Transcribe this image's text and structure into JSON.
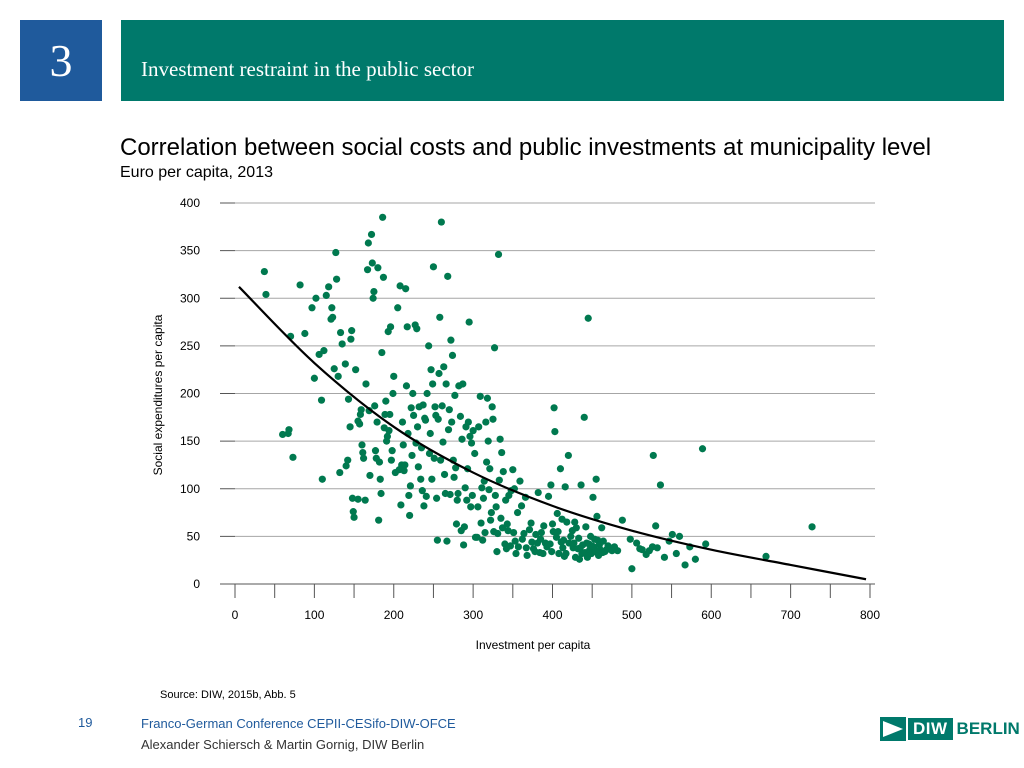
{
  "header": {
    "section_number": "3",
    "title": "Investment restraint in the public sector"
  },
  "colors": {
    "section_box": "#1f5a9c",
    "header_bar": "#00796b",
    "points": "#00794f",
    "trend": "#000000"
  },
  "chart_data": {
    "type": "scatter",
    "title": "Correlation between social costs and public investments at municipality level",
    "subtitle": "Euro per capita, 2013",
    "xlabel": "Investment per capita",
    "ylabel": "Social expenditures per capita",
    "xlim": [
      0,
      800
    ],
    "ylim": [
      0,
      400
    ],
    "xticks": [
      0,
      100,
      200,
      300,
      400,
      500,
      600,
      700,
      800
    ],
    "yticks": [
      0,
      50,
      100,
      150,
      200,
      250,
      300,
      350,
      400
    ],
    "grid": "horizontal",
    "trendline": {
      "type": "exponential",
      "x": [
        5,
        100,
        200,
        300,
        400,
        500,
        600,
        700,
        795
      ],
      "y": [
        312,
        232,
        165,
        117,
        82,
        56,
        36,
        20,
        5
      ]
    },
    "points": [
      [
        37,
        328
      ],
      [
        39,
        304
      ],
      [
        60,
        157
      ],
      [
        67,
        158
      ],
      [
        68,
        162
      ],
      [
        70,
        260
      ],
      [
        73,
        133
      ],
      [
        82,
        314
      ],
      [
        88,
        263
      ],
      [
        97,
        290
      ],
      [
        100,
        216
      ],
      [
        102,
        300
      ],
      [
        106,
        241
      ],
      [
        109,
        193
      ],
      [
        110,
        110
      ],
      [
        112,
        245
      ],
      [
        115,
        303
      ],
      [
        118,
        312
      ],
      [
        121,
        278
      ],
      [
        122,
        290
      ],
      [
        123,
        280
      ],
      [
        125,
        226
      ],
      [
        127,
        348
      ],
      [
        128,
        320
      ],
      [
        130,
        218
      ],
      [
        132,
        117
      ],
      [
        133,
        264
      ],
      [
        135,
        252
      ],
      [
        139,
        231
      ],
      [
        140,
        124
      ],
      [
        142,
        130
      ],
      [
        143,
        194
      ],
      [
        145,
        165
      ],
      [
        146,
        257
      ],
      [
        147,
        266
      ],
      [
        148,
        90
      ],
      [
        149,
        76
      ],
      [
        150,
        70
      ],
      [
        152,
        225
      ],
      [
        155,
        171
      ],
      [
        155,
        89
      ],
      [
        157,
        168
      ],
      [
        158,
        178
      ],
      [
        159,
        183
      ],
      [
        160,
        146
      ],
      [
        161,
        138
      ],
      [
        162,
        132
      ],
      [
        164,
        88
      ],
      [
        165,
        210
      ],
      [
        167,
        330
      ],
      [
        168,
        358
      ],
      [
        169,
        182
      ],
      [
        170,
        114
      ],
      [
        172,
        367
      ],
      [
        173,
        337
      ],
      [
        174,
        300
      ],
      [
        175,
        307
      ],
      [
        176,
        187
      ],
      [
        177,
        140
      ],
      [
        178,
        132
      ],
      [
        179,
        170
      ],
      [
        180,
        332
      ],
      [
        181,
        67
      ],
      [
        182,
        128
      ],
      [
        183,
        110
      ],
      [
        184,
        95
      ],
      [
        185,
        243
      ],
      [
        186,
        385
      ],
      [
        187,
        322
      ],
      [
        188,
        164
      ],
      [
        189,
        178
      ],
      [
        190,
        192
      ],
      [
        191,
        150
      ],
      [
        192,
        155
      ],
      [
        193,
        265
      ],
      [
        194,
        161
      ],
      [
        195,
        178
      ],
      [
        196,
        270
      ],
      [
        197,
        130
      ],
      [
        198,
        140
      ],
      [
        199,
        200
      ],
      [
        200,
        218
      ],
      [
        202,
        117
      ],
      [
        205,
        290
      ],
      [
        207,
        120
      ],
      [
        208,
        313
      ],
      [
        209,
        83
      ],
      [
        210,
        125
      ],
      [
        211,
        170
      ],
      [
        212,
        146
      ],
      [
        213,
        119
      ],
      [
        214,
        125
      ],
      [
        215,
        310
      ],
      [
        216,
        208
      ],
      [
        217,
        270
      ],
      [
        218,
        158
      ],
      [
        219,
        93
      ],
      [
        220,
        72
      ],
      [
        221,
        103
      ],
      [
        222,
        185
      ],
      [
        223,
        135
      ],
      [
        224,
        200
      ],
      [
        225,
        177
      ],
      [
        227,
        272
      ],
      [
        228,
        148
      ],
      [
        229,
        268
      ],
      [
        230,
        165
      ],
      [
        231,
        123
      ],
      [
        232,
        186
      ],
      [
        234,
        110
      ],
      [
        235,
        143
      ],
      [
        236,
        98
      ],
      [
        237,
        188
      ],
      [
        238,
        82
      ],
      [
        239,
        174
      ],
      [
        240,
        172
      ],
      [
        241,
        92
      ],
      [
        242,
        200
      ],
      [
        244,
        250
      ],
      [
        245,
        137
      ],
      [
        246,
        158
      ],
      [
        247,
        225
      ],
      [
        248,
        110
      ],
      [
        249,
        210
      ],
      [
        250,
        333
      ],
      [
        251,
        132
      ],
      [
        252,
        186
      ],
      [
        253,
        177
      ],
      [
        254,
        90
      ],
      [
        255,
        46
      ],
      [
        256,
        173
      ],
      [
        257,
        221
      ],
      [
        258,
        280
      ],
      [
        259,
        130
      ],
      [
        260,
        380
      ],
      [
        261,
        187
      ],
      [
        262,
        149
      ],
      [
        263,
        228
      ],
      [
        264,
        115
      ],
      [
        265,
        95
      ],
      [
        266,
        210
      ],
      [
        267,
        45
      ],
      [
        268,
        323
      ],
      [
        269,
        162
      ],
      [
        270,
        183
      ],
      [
        271,
        94
      ],
      [
        272,
        256
      ],
      [
        273,
        170
      ],
      [
        274,
        240
      ],
      [
        275,
        130
      ],
      [
        276,
        112
      ],
      [
        277,
        198
      ],
      [
        278,
        122
      ],
      [
        279,
        63
      ],
      [
        280,
        88
      ],
      [
        281,
        95
      ],
      [
        282,
        208
      ],
      [
        284,
        176
      ],
      [
        285,
        56
      ],
      [
        286,
        152
      ],
      [
        287,
        210
      ],
      [
        288,
        41
      ],
      [
        289,
        60
      ],
      [
        290,
        101
      ],
      [
        291,
        165
      ],
      [
        292,
        88
      ],
      [
        293,
        121
      ],
      [
        294,
        170
      ],
      [
        295,
        275
      ],
      [
        296,
        155
      ],
      [
        297,
        81
      ],
      [
        298,
        148
      ],
      [
        299,
        93
      ],
      [
        300,
        161
      ],
      [
        302,
        137
      ],
      [
        303,
        49
      ],
      [
        305,
        49
      ],
      [
        306,
        81
      ],
      [
        307,
        165
      ],
      [
        309,
        197
      ],
      [
        310,
        64
      ],
      [
        311,
        101
      ],
      [
        312,
        46
      ],
      [
        313,
        90
      ],
      [
        314,
        108
      ],
      [
        315,
        54
      ],
      [
        316,
        170
      ],
      [
        317,
        128
      ],
      [
        318,
        195
      ],
      [
        319,
        150
      ],
      [
        320,
        99
      ],
      [
        321,
        121
      ],
      [
        322,
        67
      ],
      [
        323,
        75
      ],
      [
        324,
        186
      ],
      [
        325,
        173
      ],
      [
        326,
        55
      ],
      [
        327,
        248
      ],
      [
        328,
        93
      ],
      [
        329,
        81
      ],
      [
        330,
        34
      ],
      [
        331,
        53
      ],
      [
        332,
        346
      ],
      [
        333,
        109
      ],
      [
        334,
        152
      ],
      [
        335,
        69
      ],
      [
        336,
        138
      ],
      [
        337,
        59
      ],
      [
        338,
        118
      ],
      [
        340,
        42
      ],
      [
        341,
        88
      ],
      [
        342,
        37
      ],
      [
        343,
        63
      ],
      [
        344,
        56
      ],
      [
        345,
        93
      ],
      [
        347,
        40
      ],
      [
        348,
        98
      ],
      [
        350,
        120
      ],
      [
        351,
        54
      ],
      [
        352,
        100
      ],
      [
        353,
        45
      ],
      [
        354,
        32
      ],
      [
        356,
        75
      ],
      [
        357,
        39
      ],
      [
        359,
        108
      ],
      [
        361,
        82
      ],
      [
        362,
        47
      ],
      [
        364,
        53
      ],
      [
        366,
        91
      ],
      [
        367,
        38
      ],
      [
        368,
        30
      ],
      [
        371,
        57
      ],
      [
        373,
        64
      ],
      [
        374,
        44
      ],
      [
        376,
        37
      ],
      [
        378,
        34
      ],
      [
        379,
        52
      ],
      [
        381,
        43
      ],
      [
        382,
        96
      ],
      [
        384,
        33
      ],
      [
        385,
        47
      ],
      [
        386,
        54
      ],
      [
        388,
        32
      ],
      [
        389,
        61
      ],
      [
        391,
        43
      ],
      [
        393,
        39
      ],
      [
        395,
        92
      ],
      [
        397,
        42
      ],
      [
        398,
        104
      ],
      [
        399,
        34
      ],
      [
        400,
        63
      ],
      [
        401,
        55
      ],
      [
        402,
        185
      ],
      [
        403,
        160
      ],
      [
        405,
        49
      ],
      [
        406,
        74
      ],
      [
        407,
        55
      ],
      [
        408,
        32
      ],
      [
        410,
        121
      ],
      [
        411,
        44
      ],
      [
        412,
        68
      ],
      [
        413,
        38
      ],
      [
        414,
        46
      ],
      [
        415,
        29
      ],
      [
        416,
        102
      ],
      [
        417,
        32
      ],
      [
        418,
        65
      ],
      [
        420,
        135
      ],
      [
        421,
        43
      ],
      [
        423,
        50
      ],
      [
        425,
        56
      ],
      [
        426,
        38
      ],
      [
        427,
        43
      ],
      [
        428,
        65
      ],
      [
        429,
        28
      ],
      [
        430,
        59
      ],
      [
        432,
        37
      ],
      [
        433,
        48
      ],
      [
        434,
        26
      ],
      [
        435,
        38
      ],
      [
        436,
        104
      ],
      [
        437,
        32
      ],
      [
        438,
        41
      ],
      [
        440,
        175
      ],
      [
        441,
        33
      ],
      [
        442,
        60
      ],
      [
        443,
        43
      ],
      [
        444,
        28
      ],
      [
        445,
        279
      ],
      [
        446,
        42
      ],
      [
        447,
        36
      ],
      [
        448,
        50
      ],
      [
        449,
        32
      ],
      [
        450,
        40
      ],
      [
        451,
        91
      ],
      [
        452,
        39
      ],
      [
        453,
        47
      ],
      [
        454,
        34
      ],
      [
        455,
        110
      ],
      [
        456,
        71
      ],
      [
        457,
        46
      ],
      [
        458,
        30
      ],
      [
        459,
        41
      ],
      [
        460,
        36
      ],
      [
        462,
        59
      ],
      [
        463,
        33
      ],
      [
        464,
        45
      ],
      [
        466,
        34
      ],
      [
        468,
        36
      ],
      [
        470,
        40
      ],
      [
        475,
        35
      ],
      [
        478,
        39
      ],
      [
        482,
        35
      ],
      [
        488,
        67
      ],
      [
        498,
        47
      ],
      [
        500,
        16
      ],
      [
        506,
        43
      ],
      [
        510,
        37
      ],
      [
        513,
        36
      ],
      [
        518,
        31
      ],
      [
        522,
        35
      ],
      [
        526,
        39
      ],
      [
        527,
        135
      ],
      [
        530,
        61
      ],
      [
        532,
        38
      ],
      [
        536,
        104
      ],
      [
        541,
        28
      ],
      [
        547,
        45
      ],
      [
        551,
        52
      ],
      [
        556,
        32
      ],
      [
        560,
        50
      ],
      [
        567,
        20
      ],
      [
        573,
        39
      ],
      [
        580,
        26
      ],
      [
        589,
        142
      ],
      [
        593,
        42
      ],
      [
        669,
        29
      ],
      [
        727,
        60
      ]
    ]
  },
  "source": "Source:  DIW, 2015b, Abb. 5",
  "footer": {
    "page_number": "19",
    "line1": "Franco-German Conference CEPII-CESifo-DIW-OFCE",
    "line2": "Alexander Schiersch & Martin Gornig, DIW Berlin",
    "logo_diw": "DIW",
    "logo_berlin": "BERLIN"
  }
}
